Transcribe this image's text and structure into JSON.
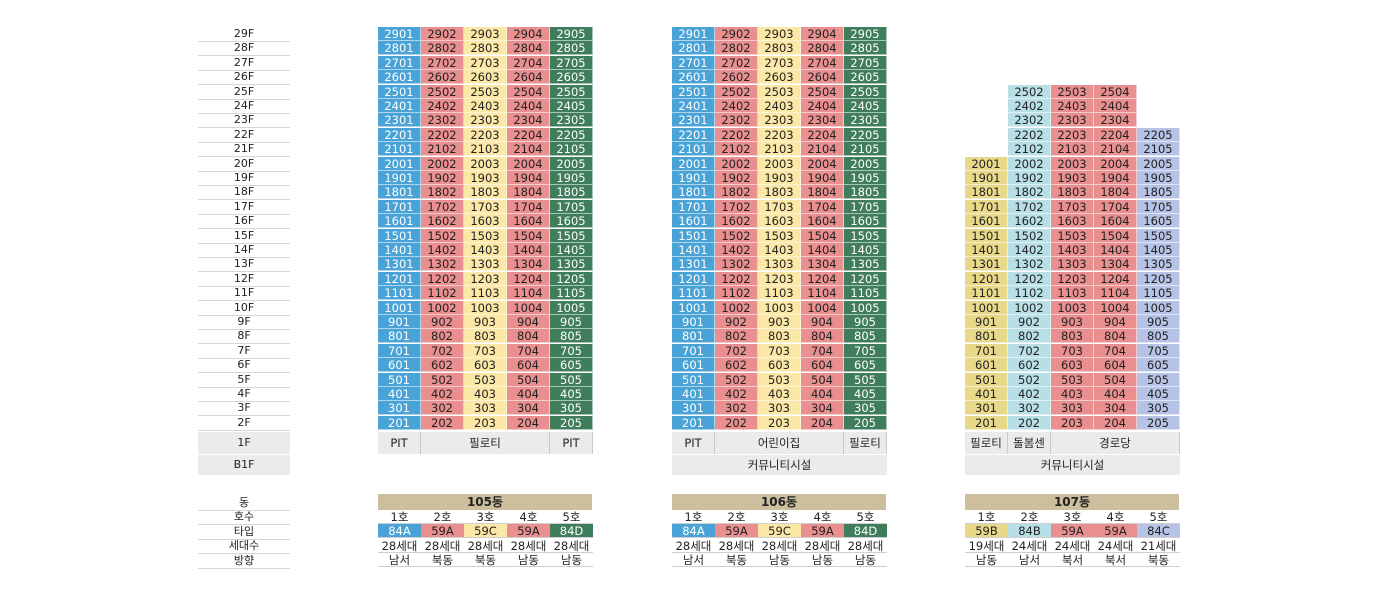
{
  "floors": [
    "29F",
    "28F",
    "27F",
    "26F",
    "25F",
    "24F",
    "23F",
    "22F",
    "21F",
    "20F",
    "19F",
    "18F",
    "17F",
    "16F",
    "15F",
    "14F",
    "13F",
    "12F",
    "11F",
    "10F",
    "9F",
    "8F",
    "7F",
    "6F",
    "5F",
    "4F",
    "3F",
    "2F"
  ],
  "ground_floor": "1F",
  "basement": "B1F",
  "info_labels": [
    "동",
    "호수",
    "타입",
    "세대수",
    "방향"
  ],
  "colors": {
    "blue": "#4aa3d6",
    "pink": "#e98f8f",
    "yellow": "#fbe7a6",
    "green": "#3f7d5c",
    "light_blue": "#b8dfe6",
    "lavender": "#b7c3e6",
    "olive": "#e8d98a"
  },
  "buildings": [
    {
      "name": "105동",
      "columns": [
        {
          "line": 1,
          "floors": [
            2,
            29
          ],
          "color": "blue"
        },
        {
          "line": 2,
          "floors": [
            2,
            29
          ],
          "color": "pink"
        },
        {
          "line": 3,
          "floors": [
            2,
            29
          ],
          "color": "yellow"
        },
        {
          "line": 4,
          "floors": [
            2,
            29
          ],
          "color": "pink"
        },
        {
          "line": 5,
          "floors": [
            2,
            29
          ],
          "color": "green"
        }
      ],
      "ground": [
        {
          "label": "PIT",
          "span": 1
        },
        {
          "label": "필로티",
          "span": 3
        },
        {
          "label": "PIT",
          "span": 1
        }
      ],
      "basement": null,
      "info": {
        "units": [
          "1호",
          "2호",
          "3호",
          "4호",
          "5호"
        ],
        "types": [
          "84A",
          "59A",
          "59C",
          "59A",
          "84D"
        ],
        "households": [
          "28세대",
          "28세대",
          "28세대",
          "28세대",
          "28세대"
        ],
        "directions": [
          "남서",
          "북동",
          "북동",
          "남동",
          "남동"
        ]
      }
    },
    {
      "name": "106동",
      "columns": [
        {
          "line": 1,
          "floors": [
            2,
            29
          ],
          "color": "blue"
        },
        {
          "line": 2,
          "floors": [
            2,
            29
          ],
          "color": "pink"
        },
        {
          "line": 3,
          "floors": [
            2,
            29
          ],
          "color": "yellow"
        },
        {
          "line": 4,
          "floors": [
            2,
            29
          ],
          "color": "pink"
        },
        {
          "line": 5,
          "floors": [
            2,
            29
          ],
          "color": "green"
        }
      ],
      "ground": [
        {
          "label": "PIT",
          "span": 1
        },
        {
          "label": "어린이집",
          "span": 3
        },
        {
          "label": "필로티",
          "span": 1
        }
      ],
      "basement": "커뮤니티시설",
      "info": {
        "units": [
          "1호",
          "2호",
          "3호",
          "4호",
          "5호"
        ],
        "types": [
          "84A",
          "59A",
          "59C",
          "59A",
          "84D"
        ],
        "households": [
          "28세대",
          "28세대",
          "28세대",
          "28세대",
          "28세대"
        ],
        "directions": [
          "남서",
          "북동",
          "남동",
          "남동",
          "남동"
        ]
      }
    },
    {
      "name": "107동",
      "columns": [
        {
          "line": 1,
          "floors": [
            2,
            20
          ],
          "color": "olive"
        },
        {
          "line": 2,
          "floors": [
            2,
            25
          ],
          "color": "light_blue"
        },
        {
          "line": 3,
          "floors": [
            2,
            25
          ],
          "color": "pink"
        },
        {
          "line": 4,
          "floors": [
            2,
            25
          ],
          "color": "pink"
        },
        {
          "line": 5,
          "floors": [
            2,
            22
          ],
          "color": "lavender"
        }
      ],
      "ground": [
        {
          "label": "필로티",
          "span": 1
        },
        {
          "label": "돌봄센터",
          "span": 1
        },
        {
          "label": "경로당",
          "span": 3
        }
      ],
      "basement": "커뮤니티시설",
      "info": {
        "units": [
          "1호",
          "2호",
          "3호",
          "4호",
          "5호"
        ],
        "types": [
          "59B",
          "84B",
          "59A",
          "59A",
          "84C"
        ],
        "households": [
          "19세대",
          "24세대",
          "24세대",
          "24세대",
          "21세대"
        ],
        "directions": [
          "남동",
          "남서",
          "북서",
          "북서",
          "북동"
        ]
      }
    }
  ]
}
